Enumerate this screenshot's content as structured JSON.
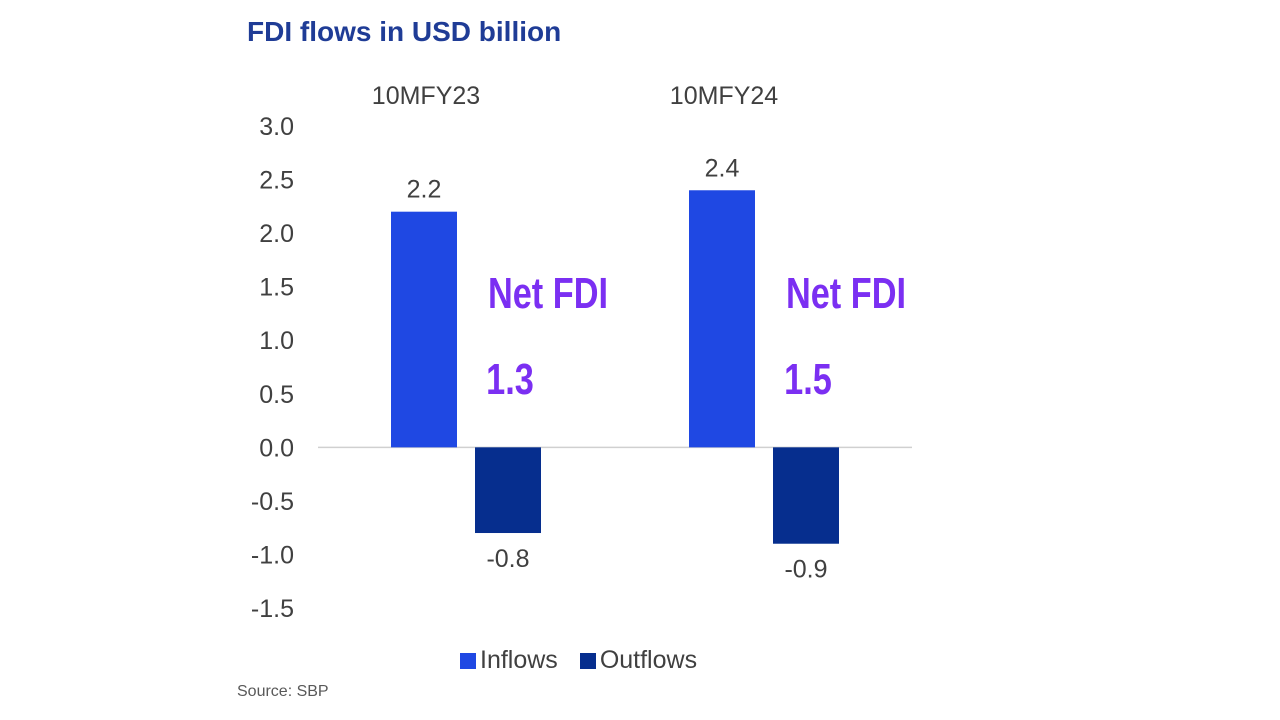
{
  "chart_data": {
    "type": "bar",
    "title": "FDI flows in USD billion",
    "categories": [
      "10MFY23",
      "10MFY24"
    ],
    "series": [
      {
        "name": "Inflows",
        "values": [
          2.2,
          2.4
        ],
        "color": "#1f48e3"
      },
      {
        "name": "Outflows",
        "values": [
          -0.8,
          -0.9
        ],
        "color": "#062e8e"
      }
    ],
    "data_labels": {
      "Inflows": [
        "2.2",
        "2.4"
      ],
      "Outflows": [
        "-0.8",
        "-0.9"
      ]
    },
    "y_ticks": [
      "3.0",
      "2.5",
      "2.0",
      "1.5",
      "1.0",
      "0.5",
      "0.0",
      "-0.5",
      "-1.0",
      "-1.5"
    ],
    "ylim": [
      -1.5,
      3.0
    ],
    "grid": false,
    "legend_position": "bottom",
    "annotations": [
      {
        "label": "Net FDI",
        "value": "1.3"
      },
      {
        "label": "Net FDI",
        "value": "1.5"
      }
    ],
    "annotation_color": "#7b2ff2",
    "source": "Source: SBP"
  }
}
